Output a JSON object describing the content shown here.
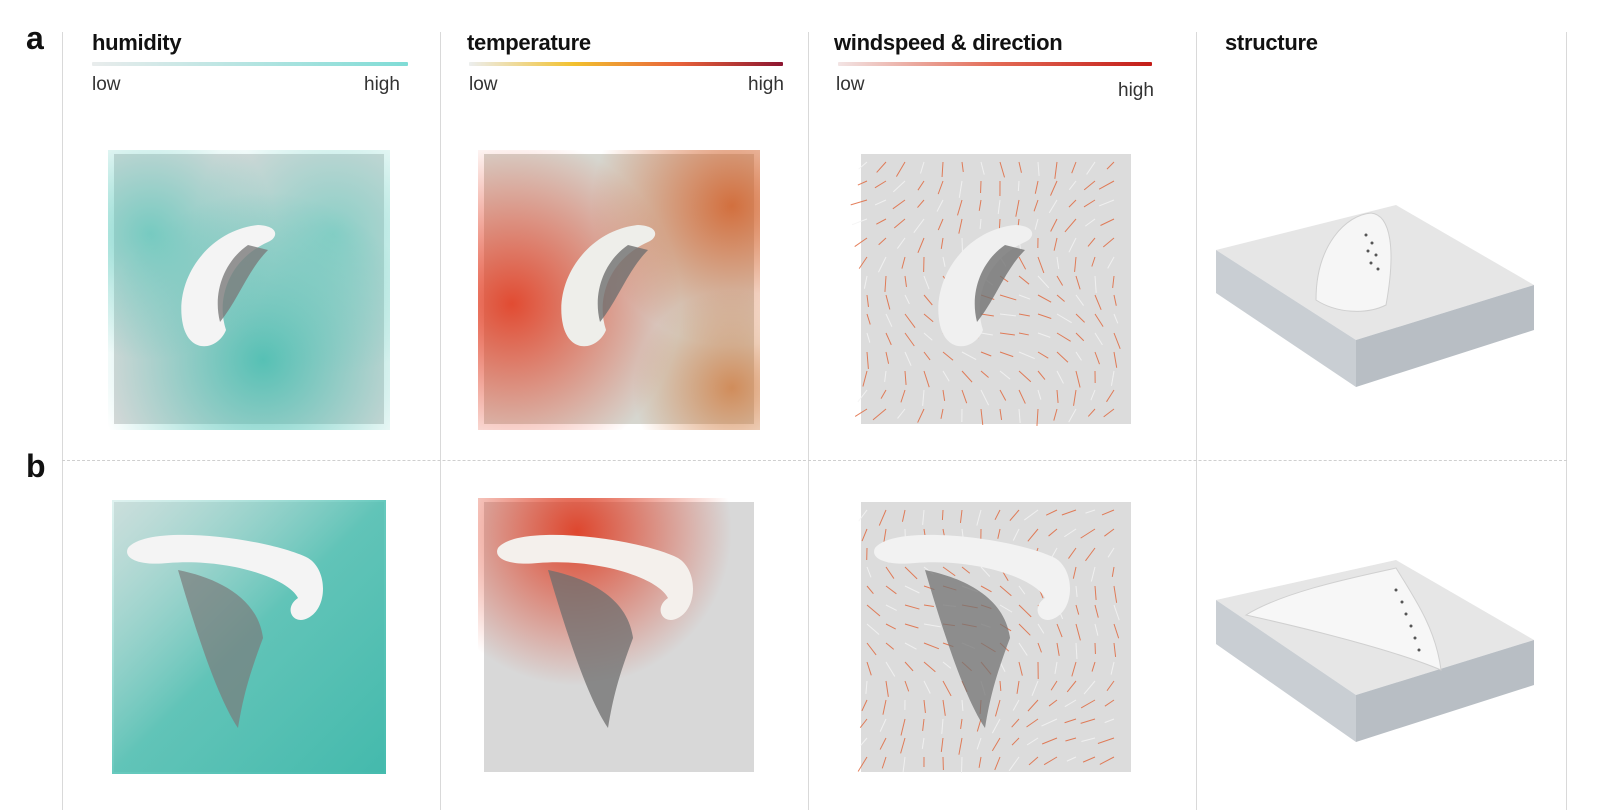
{
  "rows": [
    {
      "label": "a"
    },
    {
      "label": "b"
    }
  ],
  "columns": [
    {
      "title": "humidity",
      "scale": {
        "low": "low",
        "high": "high",
        "colors": [
          "#e9ecec",
          "#7fdcd6"
        ]
      }
    },
    {
      "title": "temperature",
      "scale": {
        "low": "low",
        "high": "high",
        "colors": [
          "#eceeee",
          "#f2c12e",
          "#e8623a",
          "#8c1530"
        ]
      }
    },
    {
      "title": "windspeed & direction",
      "scale": {
        "low": "low",
        "high": "high",
        "colors": [
          "#f2e4e4",
          "#e36a55",
          "#c31c18"
        ]
      }
    },
    {
      "title": "structure"
    }
  ],
  "colors": {
    "terrain": "#dcdcdc",
    "terrain_dark": "#bdbdbd",
    "humidity": "#45c0b2",
    "temp_hot": "#e04a2a",
    "temp_warm": "#e89a55",
    "wind": "#e06a40",
    "structure": "#f2f2f2"
  }
}
